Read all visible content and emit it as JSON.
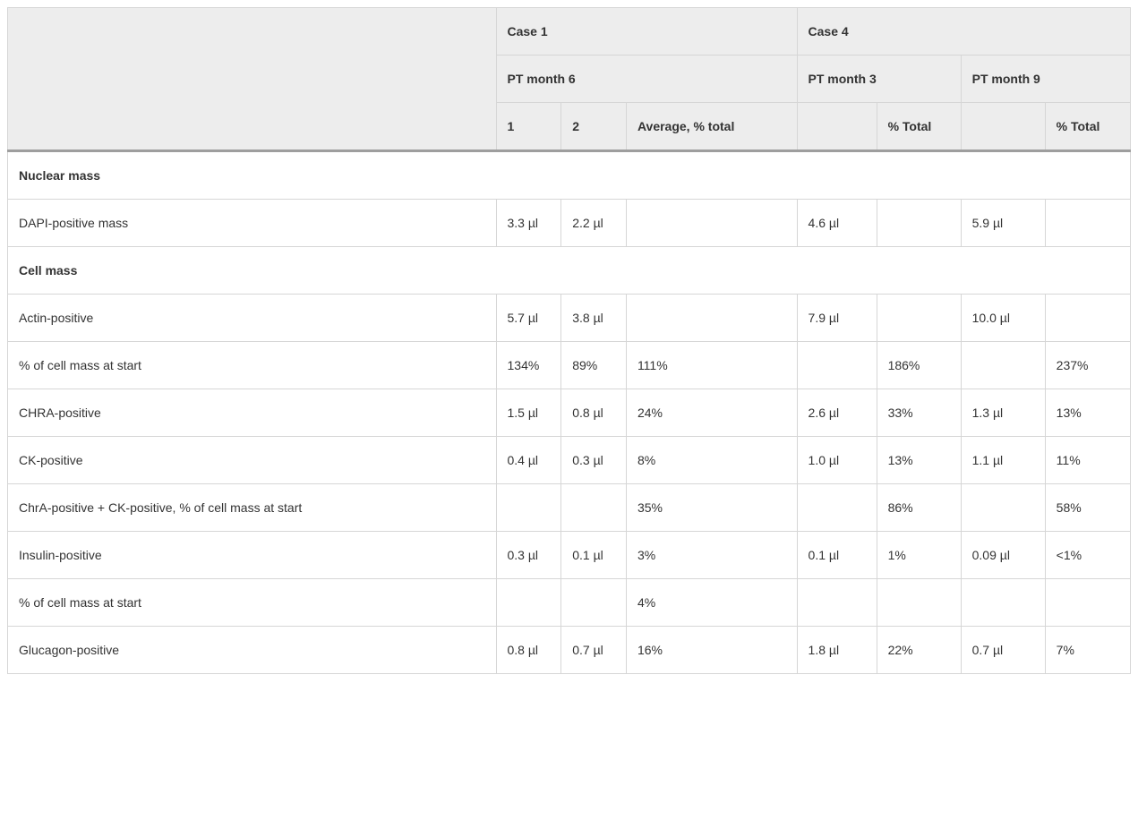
{
  "header": {
    "case1": "Case 1",
    "case4": "Case 4",
    "pt6": "PT month 6",
    "pt3": "PT month 3",
    "pt9": "PT month 9",
    "col1": "1",
    "col2": "2",
    "colAvg": "Average, % total",
    "colPct1": "% Total",
    "colPct2": "% Total"
  },
  "sections": {
    "nuclear": "Nuclear mass",
    "cell": "Cell mass"
  },
  "rows": {
    "dapi": {
      "label": "DAPI-positive mass",
      "c1": "3.3 µl",
      "c2": "2.2 µl",
      "c3": "",
      "c4": "4.6 µl",
      "c5": "",
      "c6": "5.9 µl",
      "c7": ""
    },
    "actin": {
      "label": "Actin-positive",
      "c1": "5.7 µl",
      "c2": "3.8 µl",
      "c3": "",
      "c4": "7.9 µl",
      "c5": "",
      "c6": "10.0 µl",
      "c7": ""
    },
    "pctStart1": {
      "label": "% of cell mass at start",
      "c1": "134%",
      "c2": "89%",
      "c3": "111%",
      "c4": "",
      "c5": "186%",
      "c6": "",
      "c7": "237%"
    },
    "chra": {
      "label": "CHRA-positive",
      "c1": "1.5 µl",
      "c2": "0.8 µl",
      "c3": "24%",
      "c4": "2.6 µl",
      "c5": "33%",
      "c6": "1.3 µl",
      "c7": "13%"
    },
    "ck": {
      "label": "CK-positive",
      "c1": "0.4 µl",
      "c2": "0.3 µl",
      "c3": "8%",
      "c4": "1.0 µl",
      "c5": "13%",
      "c6": "1.1 µl",
      "c7": "11%"
    },
    "chrack": {
      "label": "ChrA-positive + CK-positive, % of cell mass at start",
      "c1": "",
      "c2": "",
      "c3": "35%",
      "c4": "",
      "c5": "86%",
      "c6": "",
      "c7": "58%"
    },
    "insulin": {
      "label": "Insulin-positive",
      "c1": "0.3 µl",
      "c2": "0.1 µl",
      "c3": "3%",
      "c4": "0.1 µl",
      "c5": "1%",
      "c6": "0.09 µl",
      "c7": "<1%"
    },
    "pctStart2": {
      "label": "% of cell mass at start",
      "c1": "",
      "c2": "",
      "c3": "4%",
      "c4": "",
      "c5": "",
      "c6": "",
      "c7": ""
    },
    "glucagon": {
      "label": "Glucagon-positive",
      "c1": "0.8 µl",
      "c2": "0.7 µl",
      "c3": "16%",
      "c4": "1.8 µl",
      "c5": "22%",
      "c6": "0.7 µl",
      "c7": "7%"
    }
  }
}
